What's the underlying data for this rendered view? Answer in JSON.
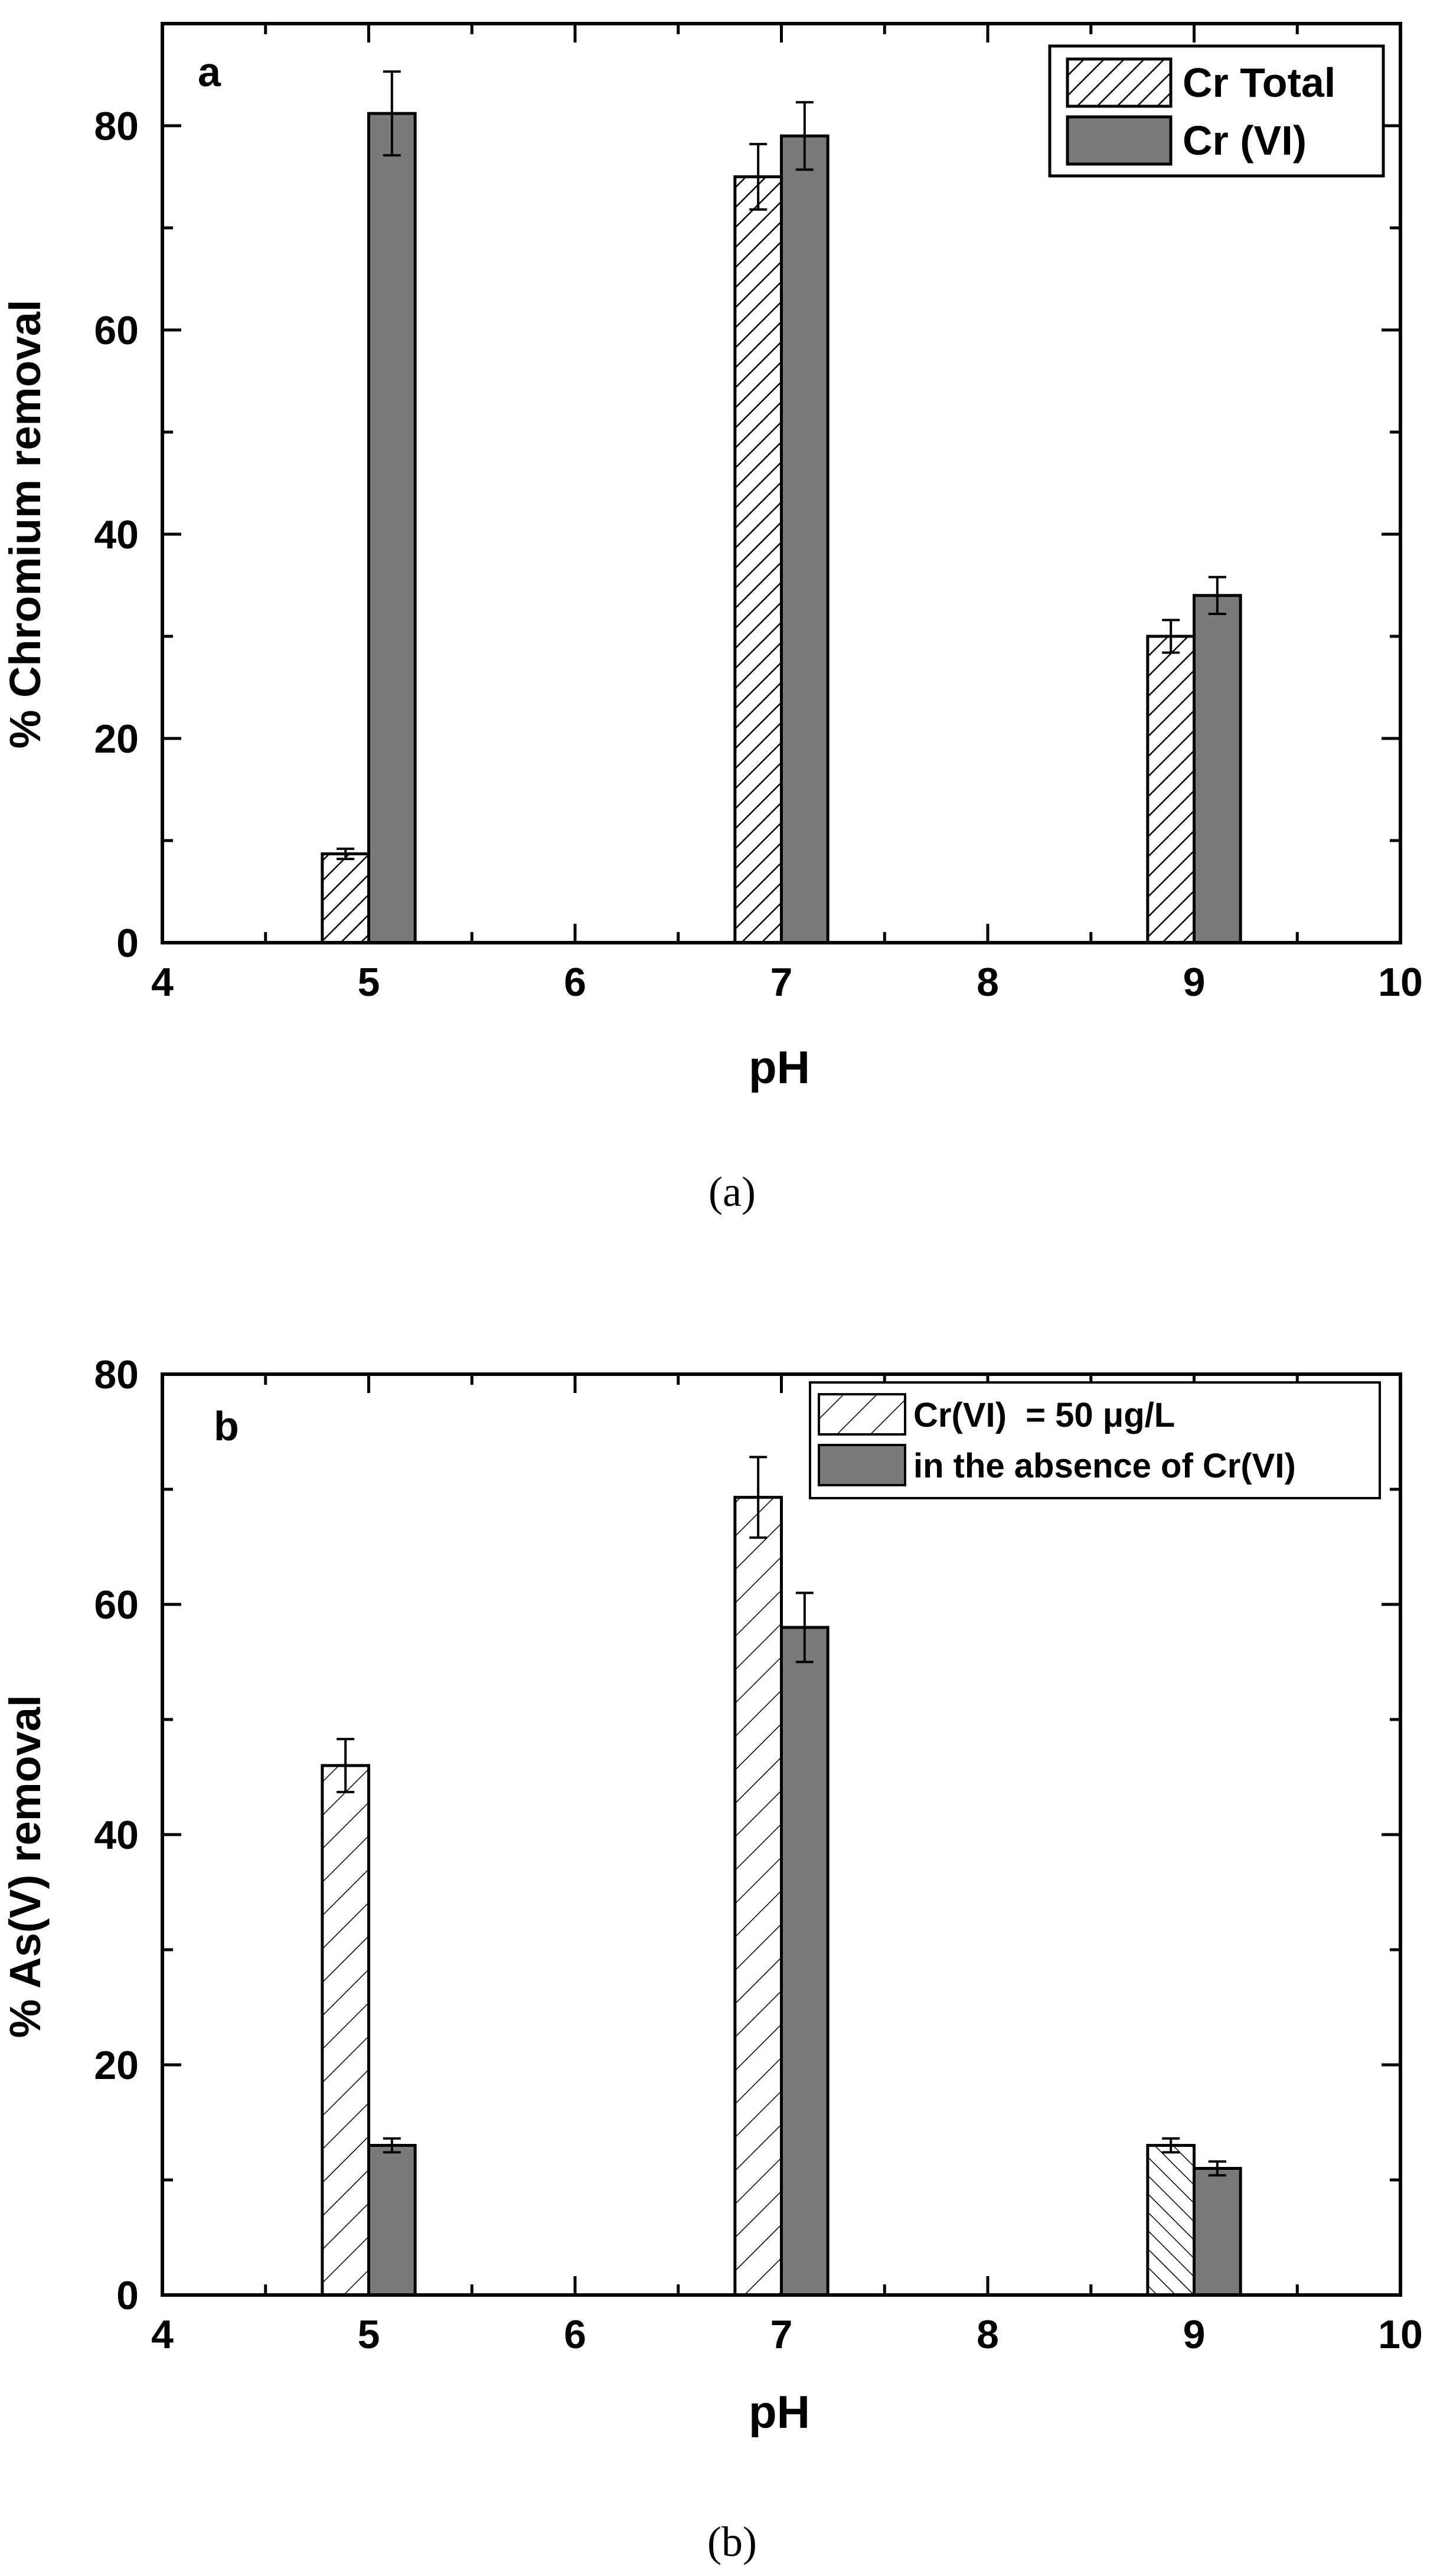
{
  "figure": {
    "caption_a": "(a)",
    "caption_b": "(b)"
  },
  "colors": {
    "solid_bar": "#7a7a7a",
    "hatch": "#000000",
    "background": "#ffffff"
  },
  "chart_data": [
    {
      "type": "bar",
      "panel_label": "a",
      "title": "",
      "xlabel": "pH",
      "ylabel": "% Chromium removal",
      "xlim": [
        4,
        10
      ],
      "ylim": [
        0,
        90
      ],
      "xticks": [
        4,
        5,
        6,
        7,
        8,
        9,
        10
      ],
      "yticks": [
        0,
        20,
        40,
        60,
        80
      ],
      "categories": [
        5,
        7,
        9
      ],
      "legend_position": "top-right",
      "series": [
        {
          "name": "Cr Total",
          "pattern": "hatch-dense",
          "values": [
            8.7,
            75,
            30
          ],
          "errors": [
            0.5,
            3.2,
            1.6
          ]
        },
        {
          "name": "Cr (VI)",
          "pattern": "solid",
          "values": [
            81.2,
            79,
            34
          ],
          "errors": [
            4.1,
            3.3,
            1.8
          ]
        }
      ]
    },
    {
      "type": "bar",
      "panel_label": "b",
      "title": "",
      "xlabel": "pH",
      "ylabel": "% As(V) removal",
      "xlim": [
        4,
        10
      ],
      "ylim": [
        0,
        80
      ],
      "xticks": [
        4,
        5,
        6,
        7,
        8,
        9,
        10
      ],
      "yticks": [
        0,
        20,
        40,
        60,
        80
      ],
      "categories": [
        5,
        7,
        9
      ],
      "legend_position": "top-right",
      "series": [
        {
          "name": "Cr(VI)  = 50 μg/L",
          "pattern": "hatch-sparse",
          "values": [
            46,
            69.3,
            13
          ],
          "errors": [
            2.3,
            3.5,
            0.6
          ]
        },
        {
          "name": "in the absence of Cr(VI)",
          "pattern": "solid",
          "values": [
            13,
            58,
            11
          ],
          "errors": [
            0.6,
            3.0,
            0.6
          ]
        }
      ]
    }
  ]
}
